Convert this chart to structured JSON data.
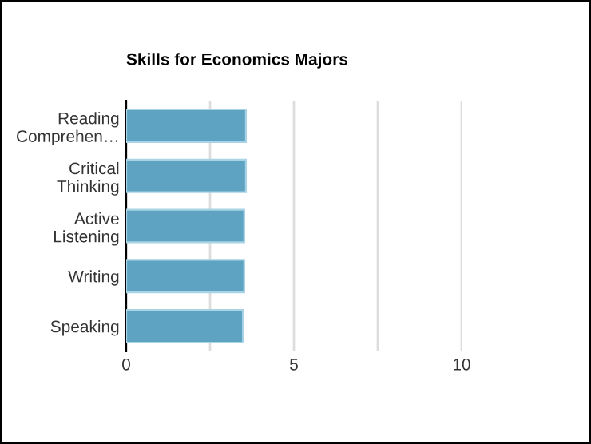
{
  "chart_data": {
    "type": "bar",
    "orientation": "horizontal",
    "title": "Skills for Economics Majors",
    "categories": [
      "Reading\nComprehen…",
      "Critical\nThinking",
      "Active\nListening",
      "Writing",
      "Speaking"
    ],
    "values": [
      3.57,
      3.57,
      3.52,
      3.52,
      3.48
    ],
    "color": "#5ea3c1",
    "xlim": [
      0,
      10
    ],
    "xticks": [
      0,
      {
        "value": 2.5,
        "label": null
      },
      5,
      {
        "value": 7.5,
        "label": null
      },
      10
    ],
    "grid": "x",
    "legend": false
  }
}
